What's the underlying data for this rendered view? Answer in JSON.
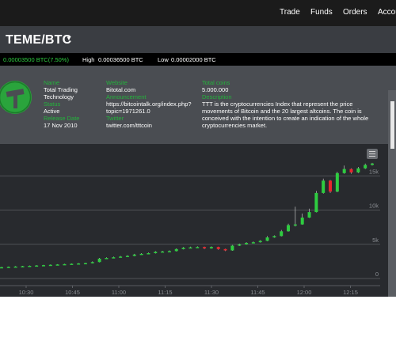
{
  "nav": {
    "trade": "Trade",
    "funds": "Funds",
    "orders": "Orders",
    "account": "Accou"
  },
  "pair": {
    "title": "TEME/BTC",
    "caret": "▼"
  },
  "ticker": {
    "last": "0.00003500 BTC(7.50%)",
    "high_label": "High",
    "high_value": "0.00036500 BTC",
    "low_label": "Low",
    "low_value": "0.00002000 BTC"
  },
  "coin_info": {
    "name_label": "Name",
    "name_line1": "Total Trading",
    "name_line2": "Technology",
    "status_label": "Status",
    "status_value": "Active",
    "release_label": "Release Date",
    "release_value": "17 Nov 2010",
    "website_label": "Website",
    "website_value": "Bitotal.com",
    "announcement_label": "Announcement",
    "announcement_line1": "https://bitcointalk.org/index.php?",
    "announcement_line2": "topic=1971261.0",
    "twitter_label": "Twitter",
    "twitter_value": "twitter.com/tttcoin",
    "total_coins_label": "Total coins",
    "total_coins_value": "5.000.000",
    "description_label": "Description",
    "description_line1": "TTT is the cryptocurrencies Index that represent the price",
    "description_line2": "movements of Bitcoin and the 20 largest altcoins. The coin is",
    "description_line3": "conceived with the intention to create an indication of the whole",
    "description_line4": "cryptocurrencies market."
  },
  "colors": {
    "up": "#2ecc40",
    "down": "#e8262d",
    "accent_label": "#24b33c",
    "chart_bg": "#282a2e"
  },
  "icons": {
    "coin_logo": "hammer-icon",
    "chart_menu": "hamburger-icon",
    "pair_dropdown": "caret-down-icon"
  },
  "chart_data": {
    "type": "candlestick",
    "x_ticks": [
      "10:30",
      "10:45",
      "11:00",
      "11:15",
      "11:30",
      "11:45",
      "12:00",
      "12:15"
    ],
    "y_ticks": [
      "0",
      "5k",
      "10k",
      "15k"
    ],
    "ylim": [
      0,
      18500
    ],
    "grid": true,
    "candles": [
      {
        "o": 1600,
        "c": 1650,
        "h": 1700,
        "l": 1550
      },
      {
        "o": 1650,
        "c": 1700,
        "h": 1750,
        "l": 1600
      },
      {
        "o": 1700,
        "c": 1750,
        "h": 1800,
        "l": 1650
      },
      {
        "o": 1750,
        "c": 1800,
        "h": 1850,
        "l": 1700
      },
      {
        "o": 1800,
        "c": 1850,
        "h": 1900,
        "l": 1750
      },
      {
        "o": 1850,
        "c": 1900,
        "h": 1950,
        "l": 1800
      },
      {
        "o": 1900,
        "c": 1950,
        "h": 2000,
        "l": 1850
      },
      {
        "o": 1950,
        "c": 2000,
        "h": 2050,
        "l": 1900
      },
      {
        "o": 2000,
        "c": 2050,
        "h": 2100,
        "l": 1950
      },
      {
        "o": 2050,
        "c": 2100,
        "h": 2150,
        "l": 2000
      },
      {
        "o": 2100,
        "c": 2150,
        "h": 2200,
        "l": 2050
      },
      {
        "o": 2150,
        "c": 2200,
        "h": 2250,
        "l": 2100
      },
      {
        "o": 2200,
        "c": 2250,
        "h": 2300,
        "l": 2150
      },
      {
        "o": 2250,
        "c": 2400,
        "h": 2500,
        "l": 2200
      },
      {
        "o": 2400,
        "c": 2900,
        "h": 3000,
        "l": 2350
      },
      {
        "o": 2900,
        "c": 3000,
        "h": 3100,
        "l": 2850
      },
      {
        "o": 3000,
        "c": 3100,
        "h": 3200,
        "l": 2950
      },
      {
        "o": 3100,
        "c": 3200,
        "h": 3300,
        "l": 3050
      },
      {
        "o": 3200,
        "c": 3300,
        "h": 3400,
        "l": 3150
      },
      {
        "o": 3300,
        "c": 3500,
        "h": 3600,
        "l": 3250
      },
      {
        "o": 3500,
        "c": 3600,
        "h": 3700,
        "l": 3450
      },
      {
        "o": 3600,
        "c": 3700,
        "h": 3800,
        "l": 3550
      },
      {
        "o": 3700,
        "c": 3900,
        "h": 4000,
        "l": 3650
      },
      {
        "o": 3900,
        "c": 3950,
        "h": 4050,
        "l": 3850
      },
      {
        "o": 3950,
        "c": 4000,
        "h": 4100,
        "l": 3900
      },
      {
        "o": 4000,
        "c": 4300,
        "h": 4400,
        "l": 3950
      },
      {
        "o": 4300,
        "c": 4500,
        "h": 4600,
        "l": 4250
      },
      {
        "o": 4500,
        "c": 4550,
        "h": 4650,
        "l": 4450
      },
      {
        "o": 4550,
        "c": 4600,
        "h": 4700,
        "l": 4500
      },
      {
        "o": 4600,
        "c": 4400,
        "h": 4650,
        "l": 4300
      },
      {
        "o": 4400,
        "c": 4600,
        "h": 4700,
        "l": 4350
      },
      {
        "o": 4600,
        "c": 4300,
        "h": 4650,
        "l": 4200
      },
      {
        "o": 4300,
        "c": 4100,
        "h": 4350,
        "l": 4000
      },
      {
        "o": 4100,
        "c": 4800,
        "h": 4900,
        "l": 4050
      },
      {
        "o": 4800,
        "c": 5000,
        "h": 5100,
        "l": 4750
      },
      {
        "o": 5000,
        "c": 5200,
        "h": 5300,
        "l": 4950
      },
      {
        "o": 5200,
        "c": 5300,
        "h": 5400,
        "l": 5150
      },
      {
        "o": 5300,
        "c": 5500,
        "h": 5600,
        "l": 5250
      },
      {
        "o": 5500,
        "c": 6000,
        "h": 6200,
        "l": 5450
      },
      {
        "o": 6000,
        "c": 6200,
        "h": 6300,
        "l": 5950
      },
      {
        "o": 6200,
        "c": 6900,
        "h": 7100,
        "l": 6150
      },
      {
        "o": 6900,
        "c": 7800,
        "h": 8000,
        "l": 6850
      },
      {
        "o": 7800,
        "c": 7900,
        "h": 10500,
        "l": 7600
      },
      {
        "o": 7900,
        "c": 8900,
        "h": 9500,
        "l": 7850
      },
      {
        "o": 8900,
        "c": 9700,
        "h": 10200,
        "l": 8850
      },
      {
        "o": 9700,
        "c": 12500,
        "h": 12800,
        "l": 9650
      },
      {
        "o": 12500,
        "c": 14300,
        "h": 14600,
        "l": 12400
      },
      {
        "o": 14300,
        "c": 12700,
        "h": 14400,
        "l": 12500
      },
      {
        "o": 12700,
        "c": 15400,
        "h": 15600,
        "l": 12600
      },
      {
        "o": 15400,
        "c": 16000,
        "h": 16500,
        "l": 15300
      },
      {
        "o": 16000,
        "c": 15500,
        "h": 16100,
        "l": 15300
      },
      {
        "o": 15500,
        "c": 16100,
        "h": 16300,
        "l": 15400
      },
      {
        "o": 16100,
        "c": 16600,
        "h": 16800,
        "l": 16000
      },
      {
        "o": 16600,
        "c": 16800,
        "h": 16900,
        "l": 16500
      }
    ]
  }
}
